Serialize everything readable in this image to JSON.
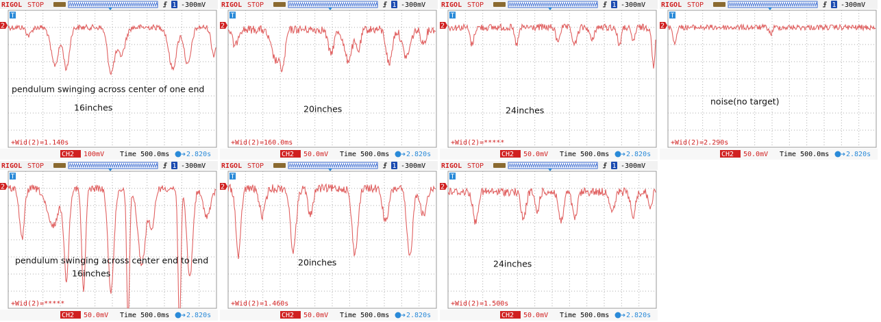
{
  "panels": [
    {
      "brand": "RIGOL",
      "status": "STOP",
      "trigger_channel": "1",
      "trigger_level": "-300mV",
      "trigger_marker": "T",
      "channel_marker": "2",
      "measurement": "+Wid(2)=1.140s",
      "channel": "CH2",
      "channel_scale": "100mV",
      "timebase": "Time 500.0ms",
      "offset": "2.820s",
      "annotations": [
        "pendulum swinging across center of one end",
        "16inches"
      ]
    },
    {
      "brand": "RIGOL",
      "status": "STOP",
      "trigger_channel": "1",
      "trigger_level": "-300mV",
      "trigger_marker": "T",
      "channel_marker": "2",
      "measurement": "+Wid(2)=160.0ms",
      "channel": "CH2",
      "channel_scale": "50.0mV",
      "timebase": "Time 500.0ms",
      "offset": "2.820s",
      "annotations": [
        "20inches"
      ]
    },
    {
      "brand": "RIGOL",
      "status": "STOP",
      "trigger_channel": "1",
      "trigger_level": "-300mV",
      "trigger_marker": "T",
      "channel_marker": "2",
      "measurement": "+Wid(2)=*****",
      "channel": "CH2",
      "channel_scale": "50.0mV",
      "timebase": "Time 500.0ms",
      "offset": "2.820s",
      "annotations": [
        "24inches"
      ]
    },
    {
      "brand": "RIGOL",
      "status": "STOP",
      "trigger_channel": "1",
      "trigger_level": "-300mV",
      "trigger_marker": "T",
      "channel_marker": "2",
      "measurement": "+Wid(2)=2.290s",
      "channel": "CH2",
      "channel_scale": "50.0mV",
      "timebase": "Time 500.0ms",
      "offset": "2.820s",
      "annotations": [
        "noise(no target)"
      ]
    },
    {
      "brand": "RIGOL",
      "status": "STOP",
      "trigger_channel": "1",
      "trigger_level": "-300mV",
      "trigger_marker": "T",
      "channel_marker": "2",
      "measurement": "+Wid(2)=*****",
      "channel": "CH2",
      "channel_scale": "50.0mV",
      "timebase": "Time 500.0ms",
      "offset": "2.820s",
      "annotations": [
        "pendulum swinging across center end to end",
        "16inches"
      ]
    },
    {
      "brand": "RIGOL",
      "status": "STOP",
      "trigger_channel": "1",
      "trigger_level": "-300mV",
      "trigger_marker": "T",
      "channel_marker": "2",
      "measurement": "+Wid(2)=1.460s",
      "channel": "CH2",
      "channel_scale": "50.0mV",
      "timebase": "Time 500.0ms",
      "offset": "2.820s",
      "annotations": [
        "20inches"
      ]
    },
    {
      "brand": "RIGOL",
      "status": "STOP",
      "trigger_channel": "1",
      "trigger_level": "-300mV",
      "trigger_marker": "T",
      "channel_marker": "2",
      "measurement": "+Wid(2)=1.500s",
      "channel": "CH2",
      "channel_scale": "50.0mV",
      "timebase": "Time 500.0ms",
      "offset": "2.820s",
      "annotations": [
        "24inches"
      ]
    }
  ]
}
